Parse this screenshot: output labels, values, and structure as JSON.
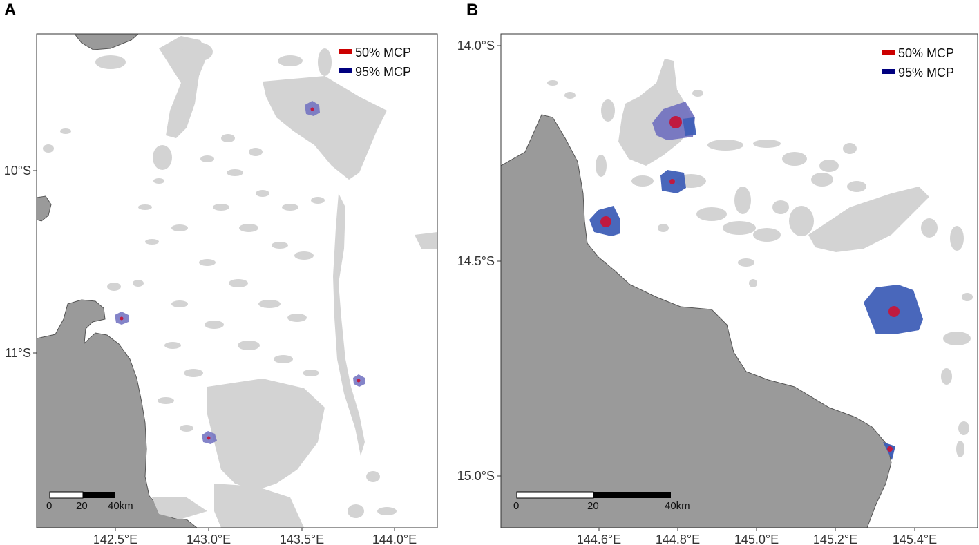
{
  "colors": {
    "mainland": "#9a9a9a",
    "reef": "#d3d3d3",
    "mcp50": "#cc0000",
    "mcp95": "#00007f",
    "mcp95_fill_a": "#6f6fbf",
    "mcp95_fill_b": "#3f5fb7",
    "mcp50_fill": "#c01a40"
  },
  "panels": [
    {
      "letter": "A",
      "lat_ticks": [
        {
          "value": "10°S"
        },
        {
          "value": "11°S"
        }
      ],
      "lon_ticks": [
        {
          "value": "142.5°E"
        },
        {
          "value": "143.0°E"
        },
        {
          "value": "143.5°E"
        },
        {
          "value": "144.0°E"
        }
      ],
      "legend": [
        {
          "label": "50% MCP",
          "color": "#cc0000"
        },
        {
          "label": "95% MCP",
          "color": "#00007f"
        }
      ],
      "scale_bar": {
        "labels": [
          "0",
          "20",
          "40km"
        ]
      }
    },
    {
      "letter": "B",
      "lat_ticks": [
        {
          "value": "14.0°S"
        },
        {
          "value": "14.5°S"
        },
        {
          "value": "15.0°S"
        }
      ],
      "lon_ticks": [
        {
          "value": "144.6°E"
        },
        {
          "value": "144.8°E"
        },
        {
          "value": "145.0°E"
        },
        {
          "value": "145.2°E"
        },
        {
          "value": "145.4°E"
        }
      ],
      "legend": [
        {
          "label": "50% MCP",
          "color": "#cc0000"
        },
        {
          "label": "95% MCP",
          "color": "#00007f"
        }
      ],
      "scale_bar": {
        "labels": [
          "0",
          "20",
          "40km"
        ]
      }
    }
  ]
}
